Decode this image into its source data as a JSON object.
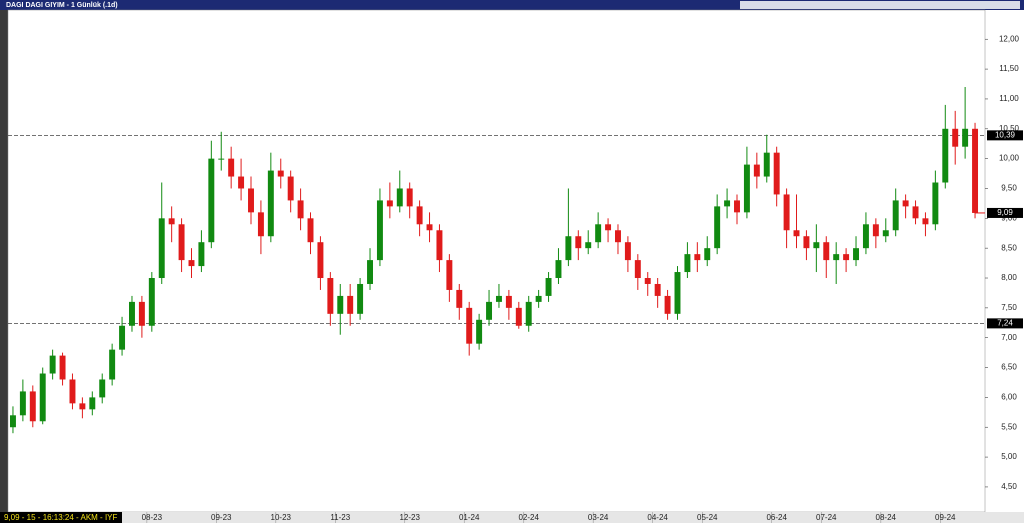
{
  "chart_data": {
    "type": "candlestick",
    "title": "DAGI DAGI GIYIM - 1 Günlük (.1d)",
    "status": "9,09 - 15 - 16:13:24 - AKM - IYF",
    "categories": [
      null,
      null,
      null,
      null,
      null,
      null,
      null,
      null,
      null,
      null,
      null,
      null,
      null,
      null,
      "08-23",
      null,
      null,
      null,
      null,
      null,
      null,
      "09-23",
      null,
      null,
      null,
      null,
      null,
      "10-23",
      null,
      null,
      null,
      null,
      null,
      "11-23",
      null,
      null,
      null,
      null,
      null,
      null,
      "12-23",
      null,
      null,
      null,
      null,
      null,
      "01-24",
      null,
      null,
      null,
      null,
      null,
      "02-24",
      null,
      null,
      null,
      null,
      null,
      null,
      "03-24",
      null,
      null,
      null,
      null,
      null,
      "04-24",
      null,
      null,
      null,
      null,
      "05-24",
      null,
      null,
      null,
      null,
      null,
      null,
      "06-24",
      null,
      null,
      null,
      null,
      "07-24",
      null,
      null,
      null,
      null,
      null,
      "08-24",
      null,
      null,
      null,
      null,
      null,
      "09-24",
      null,
      null,
      null
    ],
    "open": [
      5.5,
      5.7,
      6.1,
      5.6,
      6.4,
      6.7,
      6.3,
      5.9,
      5.8,
      6.0,
      6.3,
      6.8,
      7.2,
      7.6,
      7.2,
      8.0,
      9.0,
      8.9,
      8.3,
      8.2,
      8.6,
      10.0,
      10.0,
      9.7,
      9.5,
      9.1,
      8.7,
      9.8,
      9.7,
      9.3,
      9.0,
      8.6,
      8.0,
      7.4,
      7.7,
      7.4,
      7.9,
      8.3,
      9.3,
      9.2,
      9.5,
      9.2,
      8.9,
      8.8,
      8.3,
      7.8,
      7.5,
      6.9,
      7.3,
      7.6,
      7.7,
      7.5,
      7.2,
      7.6,
      7.7,
      8.0,
      8.3,
      8.7,
      8.5,
      8.6,
      8.9,
      8.8,
      8.6,
      8.3,
      8.0,
      7.9,
      7.7,
      7.4,
      8.1,
      8.4,
      8.3,
      8.5,
      9.2,
      9.3,
      9.1,
      9.9,
      9.7,
      10.1,
      9.4,
      8.8,
      8.7,
      8.5,
      8.6,
      8.3,
      8.4,
      8.3,
      8.5,
      8.9,
      8.7,
      8.8,
      9.3,
      9.2,
      9.0,
      8.9,
      9.6,
      10.5,
      10.2,
      10.5
    ],
    "high": [
      5.85,
      6.3,
      6.2,
      6.5,
      6.8,
      6.75,
      6.4,
      6.0,
      6.1,
      6.4,
      6.9,
      7.35,
      7.7,
      7.7,
      8.1,
      9.6,
      9.2,
      9.0,
      8.5,
      8.8,
      10.3,
      10.45,
      10.2,
      10.0,
      9.7,
      9.3,
      10.1,
      10.0,
      9.8,
      9.5,
      9.1,
      8.7,
      8.1,
      7.9,
      7.9,
      8.0,
      8.5,
      9.5,
      9.6,
      9.8,
      9.6,
      9.3,
      9.1,
      8.9,
      8.4,
      7.9,
      7.6,
      7.4,
      7.8,
      7.9,
      7.8,
      7.6,
      7.7,
      7.8,
      8.1,
      8.5,
      9.5,
      8.8,
      8.8,
      9.1,
      9.0,
      8.9,
      8.7,
      8.4,
      8.1,
      8.0,
      7.8,
      8.2,
      8.6,
      8.6,
      8.7,
      9.4,
      9.5,
      9.4,
      10.2,
      10.1,
      10.4,
      10.2,
      9.5,
      9.4,
      8.8,
      8.9,
      8.7,
      8.6,
      8.5,
      8.7,
      9.1,
      9.0,
      9.0,
      9.5,
      9.4,
      9.3,
      9.1,
      9.8,
      10.9,
      10.8,
      11.2,
      10.6
    ],
    "low": [
      5.4,
      5.6,
      5.5,
      5.55,
      6.3,
      6.2,
      5.8,
      5.65,
      5.7,
      5.9,
      6.2,
      6.7,
      7.1,
      7.0,
      7.1,
      7.9,
      8.6,
      8.1,
      8.0,
      8.1,
      8.5,
      9.8,
      9.5,
      9.3,
      8.9,
      8.4,
      8.6,
      9.5,
      9.1,
      8.8,
      8.4,
      7.8,
      7.2,
      7.05,
      7.2,
      7.3,
      7.8,
      8.2,
      9.0,
      9.1,
      9.0,
      8.7,
      8.6,
      8.1,
      7.6,
      7.3,
      6.7,
      6.8,
      7.2,
      7.5,
      7.3,
      7.15,
      7.1,
      7.5,
      7.6,
      7.9,
      8.2,
      8.3,
      8.4,
      8.5,
      8.6,
      8.4,
      8.1,
      7.8,
      7.7,
      7.5,
      7.3,
      7.3,
      8.0,
      8.1,
      8.2,
      8.4,
      9.0,
      8.9,
      9.0,
      9.5,
      9.6,
      9.2,
      8.5,
      8.5,
      8.3,
      8.1,
      8.0,
      7.9,
      8.1,
      8.2,
      8.4,
      8.5,
      8.6,
      8.7,
      9.0,
      8.9,
      8.7,
      8.8,
      9.5,
      9.9,
      10.0,
      9.0
    ],
    "close": [
      5.7,
      6.1,
      5.6,
      6.4,
      6.7,
      6.3,
      5.9,
      5.8,
      6.0,
      6.3,
      6.8,
      7.2,
      7.6,
      7.2,
      8.0,
      9.0,
      8.9,
      8.3,
      8.2,
      8.6,
      10.0,
      10.0,
      9.7,
      9.5,
      9.1,
      8.7,
      9.8,
      9.7,
      9.3,
      9.0,
      8.6,
      8.0,
      7.4,
      7.7,
      7.4,
      7.9,
      8.3,
      9.3,
      9.2,
      9.5,
      9.2,
      8.9,
      8.8,
      8.3,
      7.8,
      7.5,
      6.9,
      7.3,
      7.6,
      7.7,
      7.5,
      7.2,
      7.6,
      7.7,
      8.0,
      8.3,
      8.7,
      8.5,
      8.6,
      8.9,
      8.8,
      8.6,
      8.3,
      8.0,
      7.9,
      7.7,
      7.4,
      8.1,
      8.4,
      8.3,
      8.5,
      9.2,
      9.3,
      9.1,
      9.9,
      9.7,
      10.1,
      9.4,
      8.8,
      8.7,
      8.5,
      8.6,
      8.3,
      8.4,
      8.3,
      8.5,
      8.9,
      8.7,
      8.8,
      9.3,
      9.2,
      9.0,
      8.9,
      9.6,
      10.5,
      10.2,
      10.5,
      9.09
    ],
    "up_color": "#118a11",
    "down_color": "#e01b1b",
    "ylim": [
      4.08,
      12.49
    ],
    "yticks": [
      {
        "value": 4.5,
        "label": "4,50"
      },
      {
        "value": 5,
        "label": "5,00"
      },
      {
        "value": 5.5,
        "label": "5,50"
      },
      {
        "value": 6,
        "label": "6,00"
      },
      {
        "value": 6.5,
        "label": "6,50"
      },
      {
        "value": 7,
        "label": "7,00"
      },
      {
        "value": 7.5,
        "label": "7,50"
      },
      {
        "value": 8,
        "label": "8,00"
      },
      {
        "value": 8.5,
        "label": "8,50"
      },
      {
        "value": 9,
        "label": "9,00"
      },
      {
        "value": 9.5,
        "label": "9,50"
      },
      {
        "value": 10,
        "label": "10,00"
      },
      {
        "value": 10.5,
        "label": "10,50"
      },
      {
        "value": 11,
        "label": "11,00"
      },
      {
        "value": 11.5,
        "label": "11,50"
      },
      {
        "value": 12,
        "label": "12,00"
      }
    ],
    "hlines": [
      {
        "value": 10.39,
        "label": "10,39"
      },
      {
        "value": 7.24,
        "label": "7,24"
      }
    ],
    "last_price": {
      "value": 9.09,
      "label": "9,09"
    }
  }
}
